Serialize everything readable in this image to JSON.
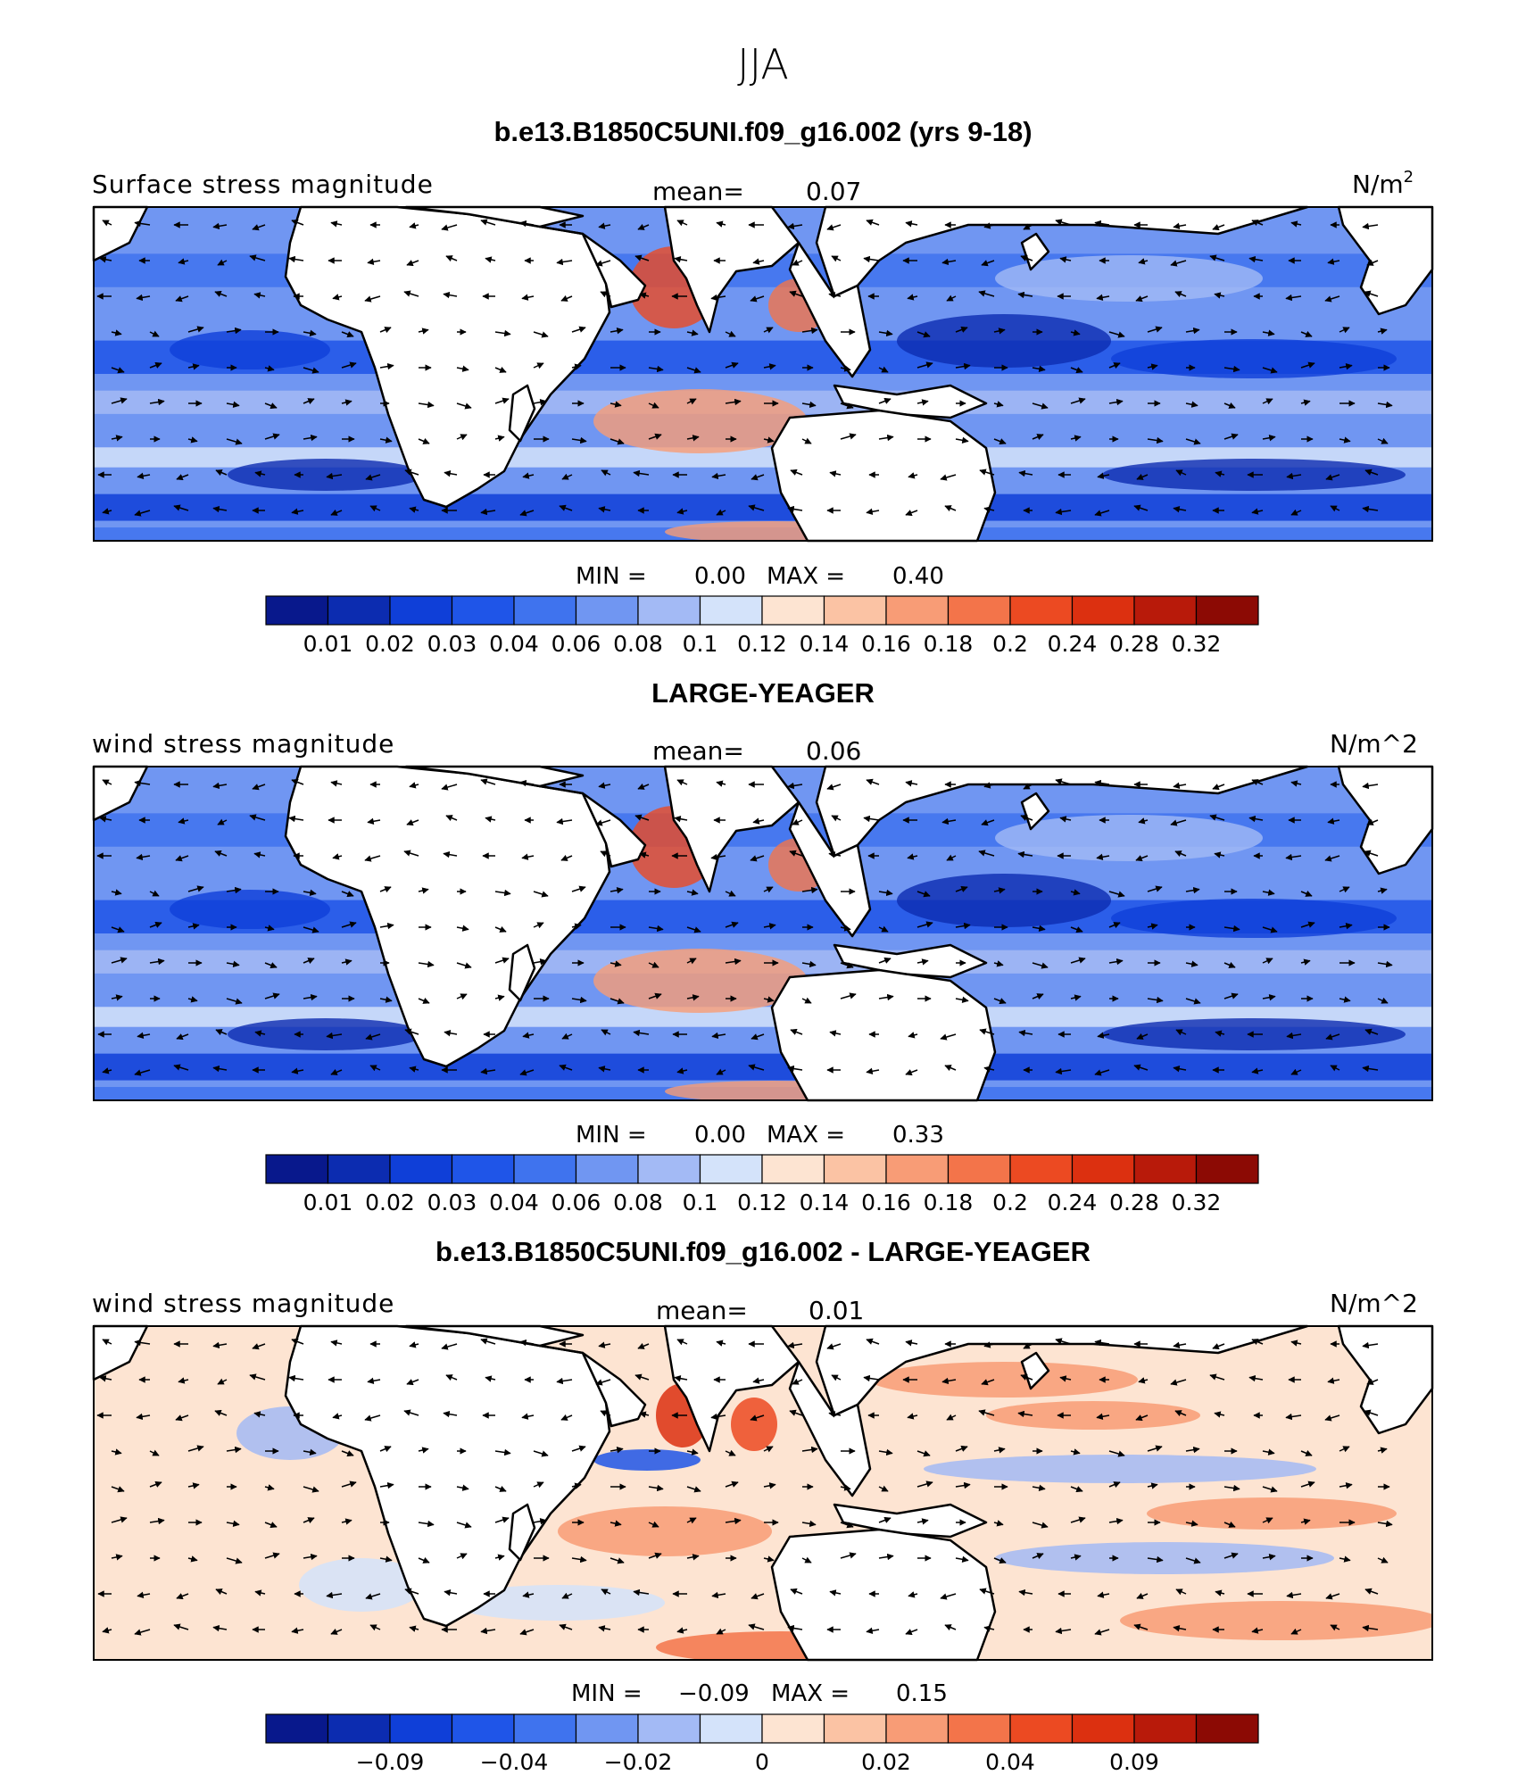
{
  "page": {
    "season": "JJA"
  },
  "panels": [
    {
      "title": "b.e13.B1850C5UNI.f09_g16.002 (yrs 9-18)",
      "variable": "Surface stress magnitude",
      "mean_label": "mean=",
      "mean_value": "0.07",
      "units_base": "N/m",
      "units_sup": "2",
      "stats": {
        "min_label": "MIN =",
        "min": "0.00",
        "max_label": "MAX =",
        "max": "0.40"
      },
      "colorbar_ticks": [
        "0.01",
        "0.02",
        "0.03",
        "0.04",
        "0.06",
        "0.08",
        "0.1",
        "0.12",
        "0.14",
        "0.16",
        "0.18",
        "0.2",
        "0.24",
        "0.28",
        "0.32"
      ],
      "field_kind": "full"
    },
    {
      "title": "LARGE-YEAGER",
      "variable": "wind stress magnitude",
      "mean_label": "mean=",
      "mean_value": "0.06",
      "units_base": "N/m^2",
      "units_sup": "",
      "stats": {
        "min_label": "MIN =",
        "min": "0.00",
        "max_label": "MAX =",
        "max": "0.33"
      },
      "colorbar_ticks": [
        "0.01",
        "0.02",
        "0.03",
        "0.04",
        "0.06",
        "0.08",
        "0.1",
        "0.12",
        "0.14",
        "0.16",
        "0.18",
        "0.2",
        "0.24",
        "0.28",
        "0.32"
      ],
      "field_kind": "full"
    },
    {
      "title": "b.e13.B1850C5UNI.f09_g16.002 - LARGE-YEAGER",
      "variable": "wind stress magnitude",
      "mean_label": "mean=",
      "mean_value": "0.01",
      "units_base": "N/m^2",
      "units_sup": "",
      "stats": {
        "min_label": "MIN =",
        "min": "−0.09",
        "max_label": "MAX =",
        "max": "0.15"
      },
      "colorbar_ticks": [
        "−0.09",
        "−0.04",
        "−0.02",
        "0",
        "0.02",
        "0.04",
        "0.09"
      ],
      "field_kind": "diff"
    }
  ],
  "colorbar_colors": [
    "#08188c",
    "#0c2cb0",
    "#0f3fd8",
    "#1f55e8",
    "#3f73ee",
    "#7096f2",
    "#a3baf5",
    "#d4e3fa",
    "#fde4d2",
    "#fbc3a4",
    "#f89c76",
    "#f3744a",
    "#ec4a22",
    "#dc3010",
    "#b81a0a",
    "#8c0a04"
  ],
  "land_color": "#ffffff",
  "coastline_color": "#000000",
  "vector_color": "#000000"
}
